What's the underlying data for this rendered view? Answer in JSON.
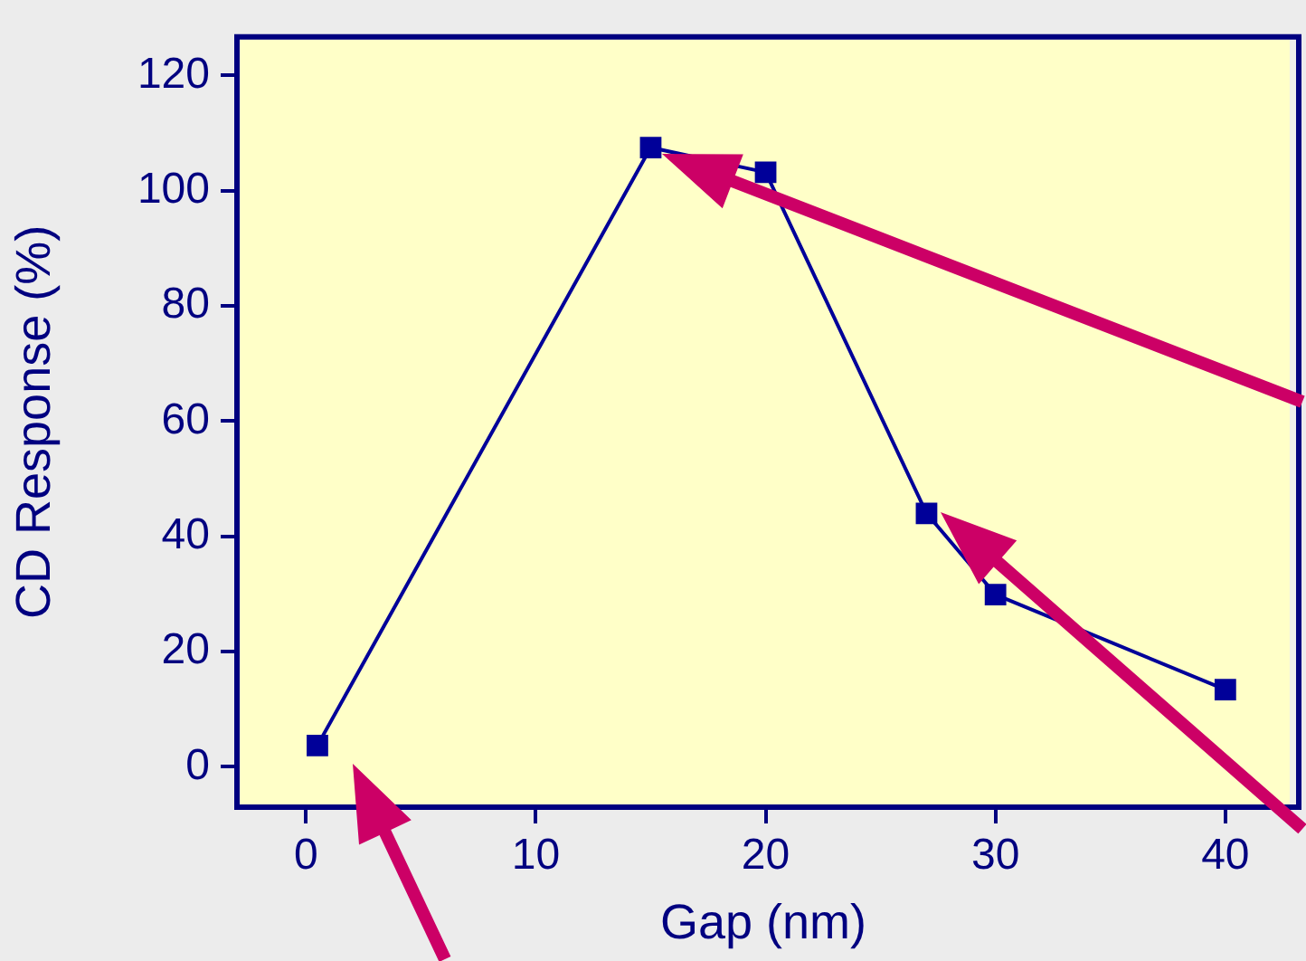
{
  "chart_data": {
    "type": "line",
    "xlabel": "Gap (nm)",
    "ylabel": "CD Response (%)",
    "x": [
      0.5,
      15,
      20,
      27,
      30,
      40
    ],
    "series": [
      {
        "color": "#000099",
        "values": [
          3.7,
          107.5,
          103.2,
          44,
          29.9,
          13.4
        ]
      }
    ],
    "xlim": [
      -3,
      42.8
    ],
    "xticks": [
      0,
      10,
      20,
      30,
      40
    ],
    "ylim": [
      -7,
      126.7
    ],
    "yticks": [
      0,
      20,
      40,
      60,
      80,
      100,
      120
    ],
    "grid": false,
    "legend": false,
    "marker": "square",
    "line_style": "solid"
  }
}
